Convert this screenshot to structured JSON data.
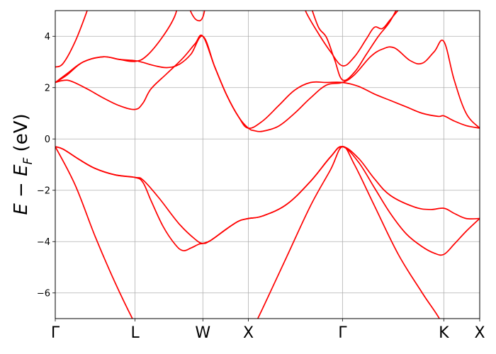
{
  "chart_data": {
    "type": "line",
    "title": "",
    "xlabel": "",
    "ylabel_main": "E − E",
    "ylabel_sub": "F",
    "ylabel_unit": " (eV)",
    "ylim": [
      -7,
      5
    ],
    "xlim": [
      0,
      5.32
    ],
    "grid": true,
    "line_color": "#ff0000",
    "x_ticks": [
      {
        "label": "Γ",
        "x": 0
      },
      {
        "label": "L",
        "x": 1.0
      },
      {
        "label": "W",
        "x": 1.85
      },
      {
        "label": "X",
        "x": 2.42
      },
      {
        "label": "Γ",
        "x": 3.6
      },
      {
        "label": "K",
        "x": 4.87
      },
      {
        "label": "X",
        "x": 5.32
      }
    ],
    "y_ticks": [
      {
        "label": "−6",
        "y": -6
      },
      {
        "label": "−4",
        "y": -4
      },
      {
        "label": "−2",
        "y": -2
      },
      {
        "label": "0",
        "y": 0
      },
      {
        "label": "2",
        "y": 2
      },
      {
        "label": "4",
        "y": 4
      }
    ],
    "series": [
      {
        "values": [
          [
            0,
            -0.3
          ],
          [
            0.25,
            -1.8
          ],
          [
            0.5,
            -3.8
          ],
          [
            0.75,
            -5.6
          ],
          [
            1.0,
            -7.2
          ],
          [
            1.15,
            -8.0
          ]
        ]
      },
      {
        "values": [
          [
            2.38,
            -8.0
          ],
          [
            2.6,
            -6.6
          ],
          [
            2.9,
            -4.6
          ],
          [
            3.2,
            -2.6
          ],
          [
            3.45,
            -1.2
          ],
          [
            3.6,
            -0.3
          ],
          [
            3.75,
            -1.0
          ],
          [
            4.0,
            -2.6
          ],
          [
            4.3,
            -4.5
          ],
          [
            4.6,
            -6.0
          ],
          [
            4.85,
            -7.2
          ],
          [
            4.9,
            -8.0
          ]
        ]
      },
      {
        "values": [
          [
            0,
            -0.3
          ],
          [
            0.1,
            -0.4
          ],
          [
            0.3,
            -0.8
          ],
          [
            0.5,
            -1.15
          ],
          [
            0.75,
            -1.4
          ],
          [
            1.0,
            -1.5
          ],
          [
            1.1,
            -1.6
          ],
          [
            1.3,
            -2.3
          ],
          [
            1.55,
            -3.3
          ],
          [
            1.75,
            -3.9
          ],
          [
            1.85,
            -4.07
          ],
          [
            1.95,
            -3.95
          ],
          [
            2.15,
            -3.5
          ],
          [
            2.3,
            -3.2
          ],
          [
            2.42,
            -3.1
          ],
          [
            2.6,
            -3.0
          ],
          [
            2.9,
            -2.55
          ],
          [
            3.2,
            -1.65
          ],
          [
            3.45,
            -0.7
          ],
          [
            3.6,
            -0.3
          ],
          [
            3.8,
            -0.75
          ],
          [
            4.0,
            -1.55
          ],
          [
            4.2,
            -2.2
          ],
          [
            4.5,
            -2.65
          ],
          [
            4.7,
            -2.75
          ],
          [
            4.87,
            -2.7
          ],
          [
            5.0,
            -2.9
          ],
          [
            5.15,
            -3.1
          ],
          [
            5.32,
            -3.1
          ]
        ]
      },
      {
        "values": [
          [
            0,
            -0.3
          ],
          [
            0.1,
            -0.4
          ],
          [
            0.3,
            -0.8
          ],
          [
            0.5,
            -1.15
          ],
          [
            0.75,
            -1.4
          ],
          [
            1.0,
            -1.5
          ],
          [
            1.1,
            -1.7
          ],
          [
            1.2,
            -2.4
          ],
          [
            1.35,
            -3.4
          ],
          [
            1.5,
            -4.1
          ],
          [
            1.6,
            -4.35
          ],
          [
            1.7,
            -4.25
          ],
          [
            1.8,
            -4.1
          ],
          [
            1.85,
            -4.07
          ],
          [
            1.95,
            -3.95
          ],
          [
            2.15,
            -3.5
          ],
          [
            2.3,
            -3.2
          ],
          [
            2.42,
            -3.1
          ],
          [
            2.6,
            -3.0
          ],
          [
            2.9,
            -2.55
          ],
          [
            3.2,
            -1.65
          ],
          [
            3.45,
            -0.7
          ],
          [
            3.6,
            -0.3
          ],
          [
            3.8,
            -0.9
          ],
          [
            4.0,
            -1.9
          ],
          [
            4.2,
            -2.9
          ],
          [
            4.4,
            -3.7
          ],
          [
            4.6,
            -4.2
          ],
          [
            4.75,
            -4.45
          ],
          [
            4.87,
            -4.5
          ],
          [
            5.0,
            -4.1
          ],
          [
            5.15,
            -3.6
          ],
          [
            5.32,
            -3.1
          ]
        ]
      },
      {
        "values": [
          [
            0,
            2.2
          ],
          [
            0.1,
            2.28
          ],
          [
            0.2,
            2.25
          ],
          [
            0.4,
            1.95
          ],
          [
            0.6,
            1.6
          ],
          [
            0.8,
            1.3
          ],
          [
            1.0,
            1.15
          ],
          [
            1.1,
            1.4
          ],
          [
            1.2,
            1.95
          ],
          [
            1.4,
            2.55
          ],
          [
            1.6,
            3.15
          ],
          [
            1.75,
            3.7
          ],
          [
            1.85,
            4.0
          ],
          [
            2.0,
            2.8
          ],
          [
            2.15,
            1.7
          ],
          [
            2.3,
            0.85
          ],
          [
            2.42,
            0.42
          ],
          [
            2.6,
            0.7
          ],
          [
            2.8,
            1.3
          ],
          [
            3.0,
            1.9
          ],
          [
            3.2,
            2.2
          ],
          [
            3.4,
            2.2
          ],
          [
            3.6,
            2.2
          ],
          [
            3.8,
            2.05
          ],
          [
            4.0,
            1.75
          ],
          [
            4.2,
            1.5
          ],
          [
            4.4,
            1.25
          ],
          [
            4.6,
            1.0
          ],
          [
            4.8,
            0.88
          ],
          [
            4.87,
            0.9
          ],
          [
            5.0,
            0.7
          ],
          [
            5.15,
            0.52
          ],
          [
            5.32,
            0.42
          ]
        ]
      },
      {
        "values": [
          [
            0,
            2.2
          ],
          [
            0.15,
            2.5
          ],
          [
            0.35,
            3.0
          ],
          [
            0.6,
            3.2
          ],
          [
            0.8,
            3.1
          ],
          [
            1.0,
            3.05
          ],
          [
            1.1,
            2.98
          ],
          [
            1.25,
            2.85
          ],
          [
            1.4,
            2.78
          ],
          [
            1.55,
            2.9
          ],
          [
            1.7,
            3.3
          ],
          [
            1.85,
            4.0
          ],
          [
            2.0,
            2.8
          ],
          [
            2.15,
            1.7
          ],
          [
            2.3,
            0.85
          ],
          [
            2.42,
            0.42
          ],
          [
            2.5,
            0.32
          ],
          [
            2.6,
            0.3
          ],
          [
            2.8,
            0.5
          ],
          [
            3.0,
            1.0
          ],
          [
            3.2,
            1.6
          ],
          [
            3.4,
            2.1
          ],
          [
            3.6,
            2.2
          ],
          [
            3.75,
            2.5
          ],
          [
            3.95,
            3.2
          ],
          [
            4.1,
            3.5
          ],
          [
            4.25,
            3.55
          ],
          [
            4.45,
            3.05
          ],
          [
            4.6,
            2.95
          ],
          [
            4.75,
            3.4
          ],
          [
            4.87,
            3.8
          ],
          [
            5.0,
            2.3
          ],
          [
            5.15,
            1.0
          ],
          [
            5.32,
            0.42
          ]
        ]
      },
      {
        "values": [
          [
            0,
            2.8
          ],
          [
            0.1,
            2.95
          ],
          [
            0.25,
            3.8
          ],
          [
            0.4,
            5.0
          ],
          [
            0.45,
            5.5
          ]
        ]
      },
      {
        "values": [
          [
            0,
            2.2
          ],
          [
            0.15,
            2.55
          ],
          [
            0.35,
            3.0
          ],
          [
            0.6,
            3.2
          ],
          [
            0.8,
            3.1
          ],
          [
            1.0,
            3.02
          ],
          [
            1.15,
            3.25
          ],
          [
            1.35,
            4.0
          ],
          [
            1.5,
            4.8
          ],
          [
            1.55,
            5.5
          ]
        ]
      },
      {
        "values": [
          [
            1.65,
            5.5
          ],
          [
            1.7,
            4.95
          ],
          [
            1.78,
            4.62
          ],
          [
            1.85,
            4.75
          ],
          [
            1.9,
            5.5
          ]
        ]
      },
      {
        "values": [
          [
            3.08,
            5.5
          ],
          [
            3.15,
            4.9
          ],
          [
            3.3,
            4.1
          ],
          [
            3.45,
            3.4
          ],
          [
            3.6,
            2.85
          ],
          [
            3.75,
            3.2
          ],
          [
            3.9,
            3.9
          ],
          [
            4.0,
            4.35
          ],
          [
            4.1,
            4.3
          ],
          [
            4.2,
            4.65
          ],
          [
            4.35,
            5.2
          ],
          [
            4.45,
            5.5
          ]
        ]
      },
      {
        "values": [
          [
            3.2,
            5.2
          ],
          [
            3.3,
            4.35
          ],
          [
            3.4,
            3.95
          ],
          [
            3.5,
            3.1
          ],
          [
            3.6,
            2.3
          ],
          [
            3.75,
            2.6
          ],
          [
            3.9,
            3.3
          ],
          [
            4.05,
            4.0
          ],
          [
            4.2,
            4.6
          ],
          [
            4.35,
            5.5
          ]
        ]
      }
    ]
  }
}
